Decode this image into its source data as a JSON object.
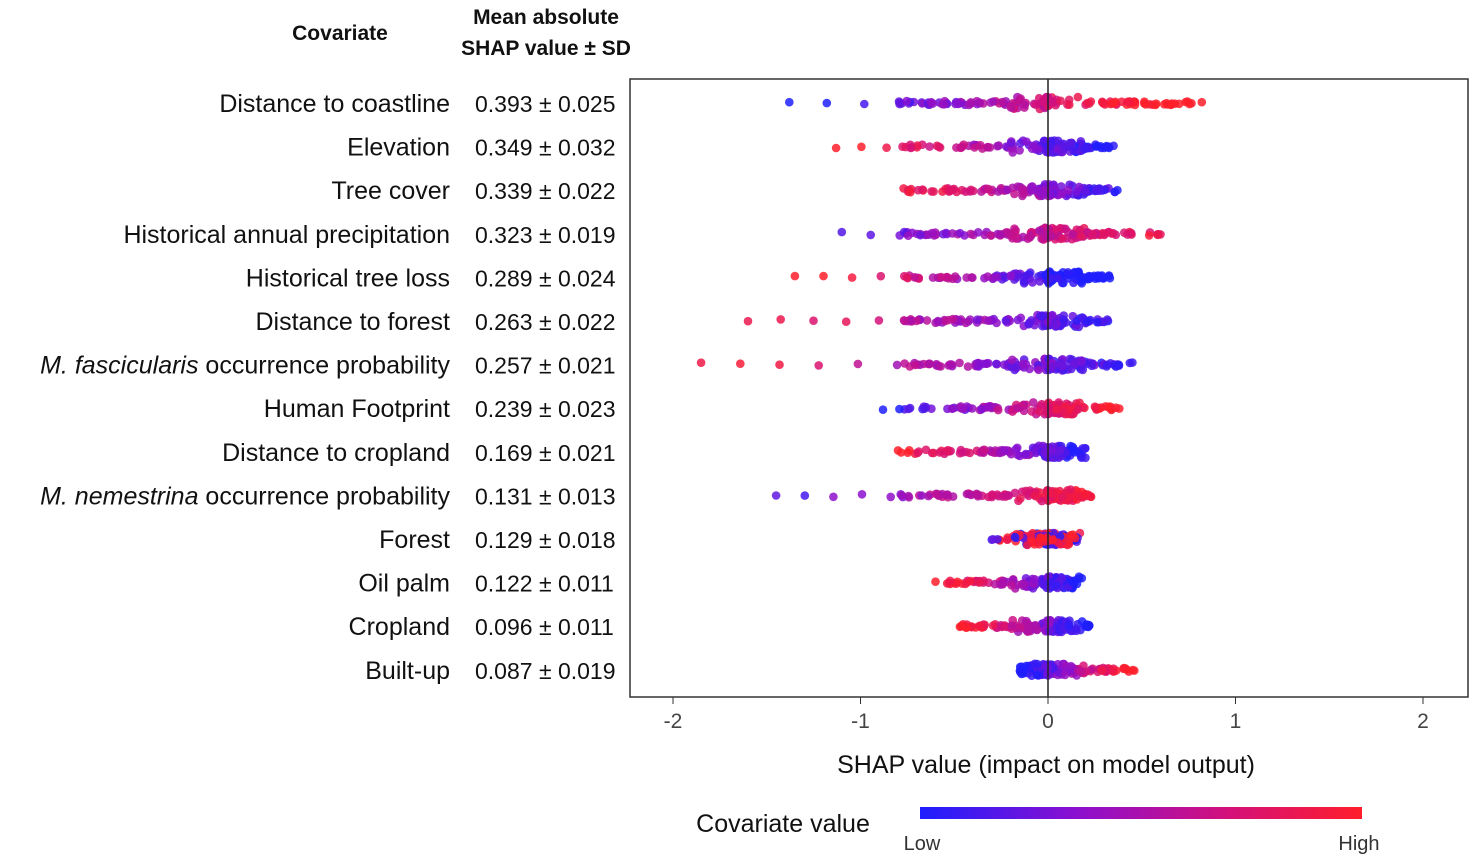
{
  "chart_data": {
    "type": "scatter",
    "subtype": "shap-beeswarm",
    "headers": {
      "covariate": "Covariate",
      "shap_line1": "Mean absolute",
      "shap_line2": "SHAP value ± SD"
    },
    "xlabel": "SHAP value (impact on model output)",
    "xlim": [
      -2.2,
      2.25
    ],
    "xticks": [
      "-2",
      "-1",
      "0",
      "1",
      "2"
    ],
    "xtick_values": [
      -2,
      -1,
      0,
      1,
      2
    ],
    "colorbar": {
      "label": "Covariate value",
      "low": "Low",
      "high": "High",
      "low_color": "#1e1eff",
      "high_color": "#ff1e2a"
    },
    "rows": [
      {
        "name": "Distance to coastline",
        "italic": "",
        "value": "0.393 ± 0.025",
        "min": -1.38,
        "max": 0.82,
        "trend": 1
      },
      {
        "name": "Elevation",
        "italic": "",
        "value": "0.349 ± 0.032",
        "min": -1.13,
        "max": 0.35,
        "trend": -0.8
      },
      {
        "name": "Tree cover",
        "italic": "",
        "value": "0.339 ± 0.022",
        "min": -0.77,
        "max": 0.37,
        "trend": -0.6
      },
      {
        "name": "Historical annual precipitation",
        "italic": "",
        "value": "0.323 ± 0.019",
        "min": -1.1,
        "max": 0.6,
        "trend": 0.5
      },
      {
        "name": "Historical tree loss",
        "italic": "",
        "value": "0.289 ± 0.024",
        "min": -1.35,
        "max": 0.33,
        "trend": -1
      },
      {
        "name": "Distance to forest",
        "italic": "",
        "value": "0.263 ± 0.022",
        "min": -1.6,
        "max": 0.32,
        "trend": -0.6
      },
      {
        "name": " occurrence probability",
        "italic": "M. fascicularis",
        "value": "0.257 ± 0.021",
        "min": -1.85,
        "max": 0.45,
        "trend": -0.6
      },
      {
        "name": "Human Footprint",
        "italic": "",
        "value": "0.239 ± 0.023",
        "min": -0.88,
        "max": 0.38,
        "trend": 0.8
      },
      {
        "name": "Distance to cropland",
        "italic": "",
        "value": "0.169 ± 0.021",
        "min": -0.8,
        "max": 0.2,
        "trend": -0.7
      },
      {
        "name": " occurrence probability",
        "italic": "M. nemestrina",
        "value": "0.131 ± 0.013",
        "min": -1.45,
        "max": 0.23,
        "trend": 0.6
      },
      {
        "name": "Forest",
        "italic": "",
        "value": "0.129 ± 0.018",
        "min": -0.3,
        "max": 0.17,
        "trend": 0
      },
      {
        "name": "Oil palm",
        "italic": "",
        "value": "0.122 ± 0.011",
        "min": -0.6,
        "max": 0.18,
        "trend": -0.8
      },
      {
        "name": "Cropland",
        "italic": "",
        "value": "0.096 ± 0.011",
        "min": -0.47,
        "max": 0.22,
        "trend": -0.8
      },
      {
        "name": "Built-up",
        "italic": "",
        "value": "0.087 ± 0.019",
        "min": -0.15,
        "max": 0.46,
        "trend": 0.9
      }
    ]
  }
}
